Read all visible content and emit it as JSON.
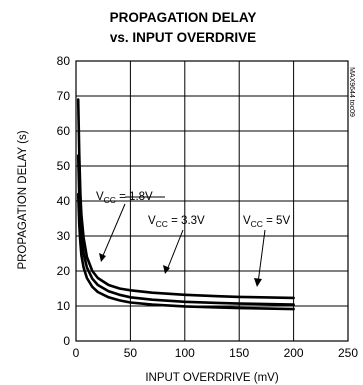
{
  "chart_data": {
    "type": "line",
    "title": "PROPAGATION DELAY",
    "subtitle": "vs. INPUT OVERDRIVE",
    "xlabel": "INPUT OVERDRIVE (mV)",
    "ylabel": "PROPAGATION DELAY (s)",
    "side_note": "MAX9644 toc09",
    "xlim": [
      0,
      250
    ],
    "ylim": [
      0,
      80
    ],
    "xticks": [
      0,
      50,
      100,
      150,
      200,
      250
    ],
    "yticks": [
      0,
      10,
      20,
      30,
      40,
      50,
      60,
      70,
      80
    ],
    "grid": true,
    "series": [
      {
        "label_main": "V",
        "label_sub": "CC",
        "label_tail": " = 1.8V",
        "x": [
          2,
          3,
          4,
          5,
          7,
          10,
          15,
          20,
          30,
          40,
          50,
          70,
          100,
          130,
          150,
          170,
          200
        ],
        "y": [
          69,
          53,
          42,
          36,
          29.5,
          24,
          20,
          18,
          16,
          15,
          14.5,
          13.8,
          13.2,
          12.8,
          12.6,
          12.5,
          12.3
        ]
      },
      {
        "label_main": "V",
        "label_sub": "CC",
        "label_tail": " = 3.3V",
        "x": [
          2,
          3,
          4,
          5,
          7,
          10,
          15,
          20,
          30,
          40,
          50,
          70,
          100,
          130,
          150,
          170,
          200
        ],
        "y": [
          53,
          41,
          34,
          29.5,
          25,
          21,
          17.8,
          16,
          14.2,
          13.2,
          12.5,
          11.8,
          11.2,
          10.9,
          10.7,
          10.6,
          10.4
        ]
      },
      {
        "label_main": "V",
        "label_sub": "CC",
        "label_tail": " = 5V",
        "x": [
          2,
          3,
          4,
          5,
          7,
          10,
          15,
          20,
          30,
          40,
          50,
          70,
          100,
          130,
          150,
          170,
          200
        ],
        "y": [
          42,
          33,
          28,
          24.5,
          21,
          18,
          15.5,
          14,
          12.5,
          11.6,
          11,
          10.4,
          9.9,
          9.6,
          9.4,
          9.3,
          9.1
        ]
      }
    ]
  }
}
